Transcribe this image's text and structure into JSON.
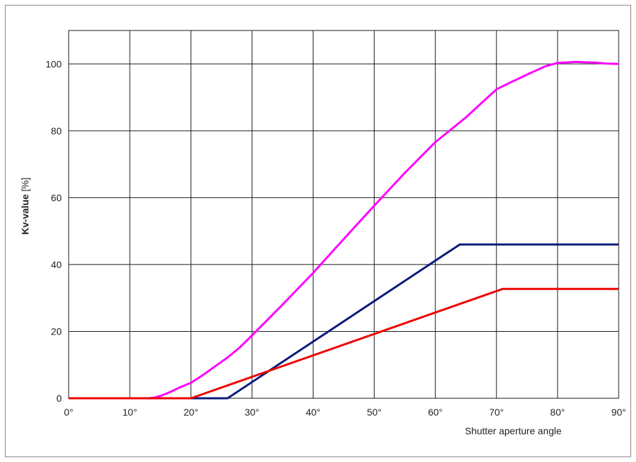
{
  "chart_data": {
    "type": "line",
    "xlabel": "Shutter aperture angle",
    "ylabel": {
      "name": "Kv-value",
      "unit": "[%]"
    },
    "xlim": [
      0,
      90
    ],
    "ylim": [
      0,
      110
    ],
    "x_ticks": [
      0,
      10,
      20,
      30,
      40,
      50,
      60,
      70,
      80,
      90
    ],
    "x_tick_labels": [
      "0°",
      "10°",
      "20°",
      "30°",
      "40°",
      "50°",
      "60°",
      "70°",
      "80°",
      "90°"
    ],
    "y_ticks": [
      0,
      20,
      40,
      60,
      80,
      100
    ],
    "y_tick_labels": [
      "0",
      "20",
      "40",
      "60",
      "80",
      "100"
    ],
    "grid": true,
    "legend": false,
    "series": [
      {
        "color": "#ff00ff",
        "points": [
          [
            0,
            0
          ],
          [
            13,
            0
          ],
          [
            14,
            0.2
          ],
          [
            15,
            0.7
          ],
          [
            16,
            1.4
          ],
          [
            17,
            2.2
          ],
          [
            18,
            3.1
          ],
          [
            20,
            4.6
          ],
          [
            22,
            7.0
          ],
          [
            24,
            9.6
          ],
          [
            26,
            12.2
          ],
          [
            28,
            15.2
          ],
          [
            30,
            18.8
          ],
          [
            35,
            28.0
          ],
          [
            40,
            37.5
          ],
          [
            45,
            47.6
          ],
          [
            50,
            57.6
          ],
          [
            55,
            67.4
          ],
          [
            60,
            76.6
          ],
          [
            65,
            84.0
          ],
          [
            70,
            92.4
          ],
          [
            72,
            94.2
          ],
          [
            75,
            96.8
          ],
          [
            78,
            99.3
          ],
          [
            80,
            100.3
          ],
          [
            83,
            100.6
          ],
          [
            86,
            100.4
          ],
          [
            88,
            100.1
          ],
          [
            90,
            100
          ]
        ]
      },
      {
        "color": "#0a1a7a",
        "points": [
          [
            0,
            0
          ],
          [
            26,
            0
          ],
          [
            64,
            46
          ],
          [
            90,
            46
          ]
        ]
      },
      {
        "color": "#ee0000",
        "points": [
          [
            0,
            0
          ],
          [
            20,
            0
          ],
          [
            71,
            32.7
          ],
          [
            90,
            32.7
          ]
        ]
      }
    ]
  }
}
